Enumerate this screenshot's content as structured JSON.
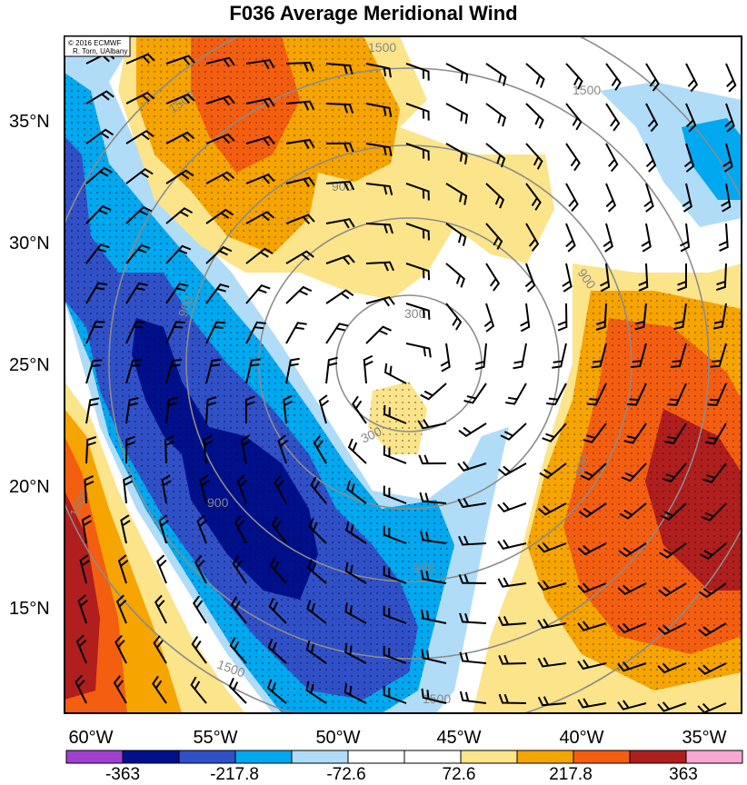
{
  "title": "F036 Average Meridional Wind",
  "credit": {
    "line1": "© 2016 ECMWF",
    "line2": "R. Torn, UAlbany"
  },
  "lat_labels": [
    "35°N",
    "30°N",
    "25°N",
    "20°N",
    "15°N"
  ],
  "lon_labels": [
    "60°W",
    "55°W",
    "50°W",
    "45°W",
    "40°W",
    "35°W"
  ],
  "contour_labels": [
    "1500",
    "1500",
    "1500",
    "900",
    "900",
    "900",
    "900",
    "300",
    "300",
    "900",
    "900",
    "1500",
    "1500",
    "1500"
  ],
  "colorbar": {
    "colors": [
      "#a040d0",
      "#00108c",
      "#3050c8",
      "#00a8f0",
      "#b0dcf8",
      "#ffffff",
      "#ffffff",
      "#fbe48a",
      "#f6a400",
      "#f45e10",
      "#b01e1e",
      "#f8a8d0"
    ],
    "labels": [
      "-363",
      "-217.8",
      "-72.6",
      "72.6",
      "217.8",
      "363"
    ]
  },
  "colors": {
    "deep_blue": "#00108c",
    "blue": "#3050c8",
    "cyan": "#00a8f0",
    "light_blue": "#b0dcf8",
    "light_yellow": "#fbe48a",
    "orange": "#f6a400",
    "red_orange": "#f45e10",
    "dark_red": "#b01e1e"
  }
}
